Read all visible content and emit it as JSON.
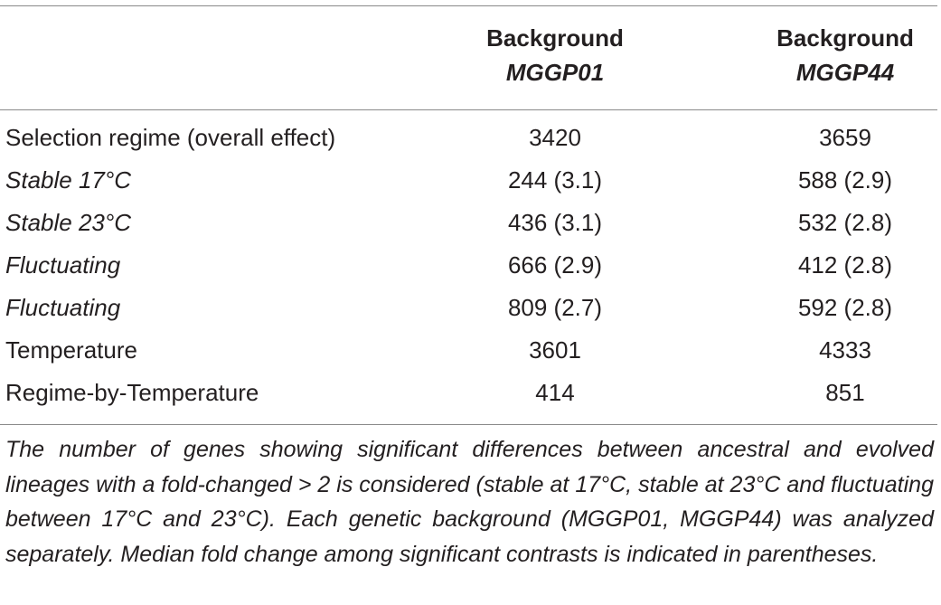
{
  "table": {
    "headers": [
      {
        "line1": "Background",
        "line2": "MGGP01"
      },
      {
        "line1": "Background",
        "line2": "MGGP44"
      }
    ],
    "rows": [
      {
        "label": "Selection regime (overall effect)",
        "italic": false,
        "v1": "3420",
        "v2": "3659"
      },
      {
        "label": "Stable 17°C",
        "italic": true,
        "v1": "244 (3.1)",
        "v2": "588 (2.9)"
      },
      {
        "label": "Stable 23°C",
        "italic": true,
        "v1": "436 (3.1)",
        "v2": "532 (2.8)"
      },
      {
        "label": "Fluctuating",
        "italic": true,
        "v1": "666 (2.9)",
        "v2": "412 (2.8)"
      },
      {
        "label": "Fluctuating",
        "italic": true,
        "v1": "809 (2.7)",
        "v2": "592 (2.8)"
      },
      {
        "label": "Temperature",
        "italic": false,
        "v1": "3601",
        "v2": "4333"
      },
      {
        "label": "Regime-by-Temperature",
        "italic": false,
        "v1": "414",
        "v2": "851"
      }
    ],
    "footnote": "The number of genes showing significant differences between ancestral and evolved lineages with a fold-changed > 2 is considered (stable at 17°C, stable at 23°C and fluctuating between 17°C and 23°C). Each genetic background (MGGP01, MGGP44) was analyzed separately. Median fold change among significant contrasts is indicated in parentheses."
  }
}
